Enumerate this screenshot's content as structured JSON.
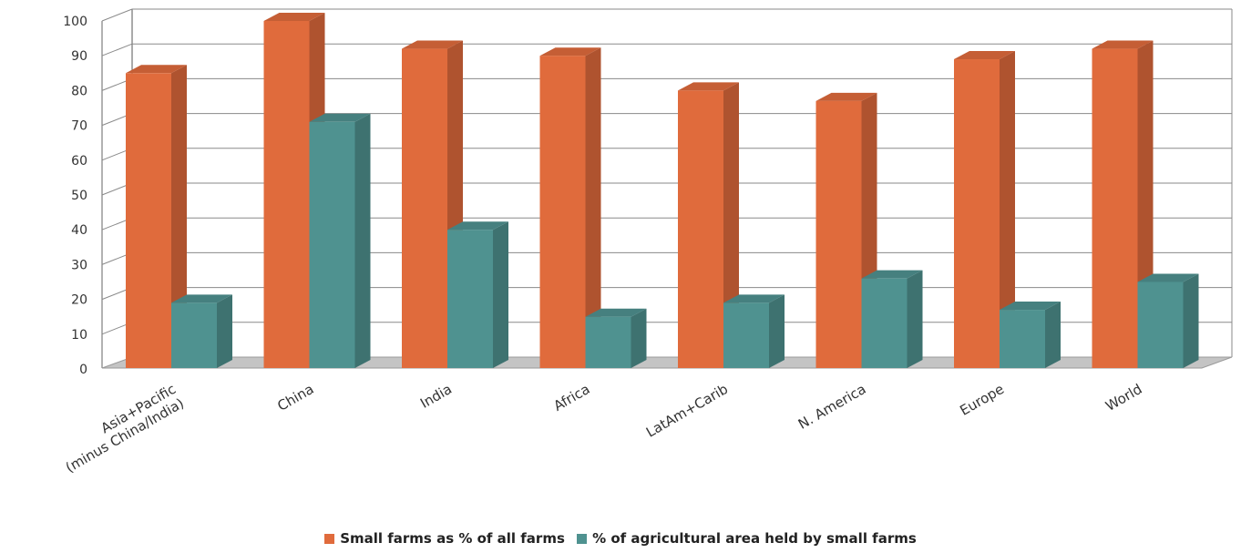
{
  "chart_data": {
    "type": "bar",
    "categories": [
      "Asia+Pacific\n(minus China/India)",
      "China",
      "India",
      "Africa",
      "LatAm+Carib",
      "N. America",
      "Europe",
      "World"
    ],
    "series": [
      {
        "name": "Small farms as % of all farms",
        "color": "#e06b3c",
        "values": [
          85,
          100,
          92,
          90,
          80,
          77,
          89,
          92
        ]
      },
      {
        "name": "% of agricultural area held by small farms",
        "color": "#4f9290",
        "values": [
          19,
          71,
          40,
          15,
          19,
          26,
          17,
          25
        ]
      }
    ],
    "yticks": [
      "0",
      "10",
      "20",
      "30",
      "40",
      "50",
      "60",
      "70",
      "80",
      "90",
      "100"
    ],
    "ylim": [
      0,
      100
    ],
    "grid": true,
    "legend_position": "bottom",
    "style": "3d-clustered-column"
  }
}
